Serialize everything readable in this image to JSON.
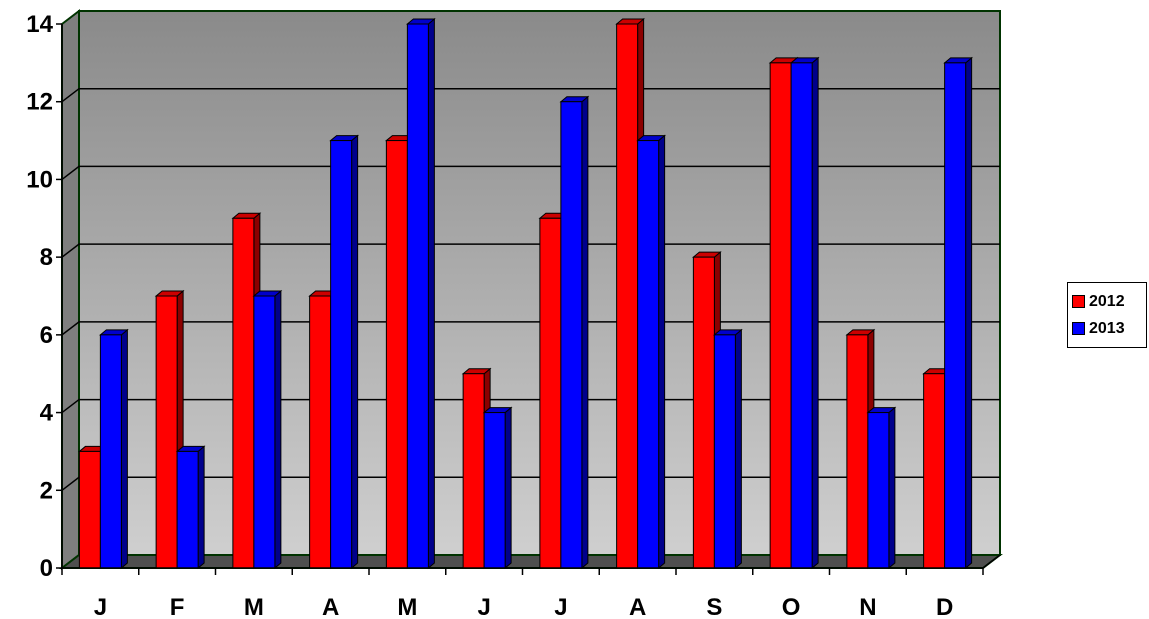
{
  "chart_data": {
    "type": "bar",
    "categories": [
      "J",
      "F",
      "M",
      "A",
      "M",
      "J",
      "J",
      "A",
      "S",
      "O",
      "N",
      "D"
    ],
    "series": [
      {
        "name": "2012",
        "color": "#ff0000",
        "values": [
          3,
          7,
          9,
          7,
          11,
          5,
          9,
          14,
          8,
          13,
          6,
          5
        ]
      },
      {
        "name": "2013",
        "color": "#0000ff",
        "values": [
          6,
          3,
          7,
          11,
          14,
          4,
          12,
          11,
          6,
          13,
          4,
          13
        ]
      }
    ],
    "yticks": [
      "0",
      "2",
      "4",
      "6",
      "8",
      "10",
      "12",
      "14"
    ],
    "ylim": [
      0,
      14
    ],
    "title": "",
    "xlabel": "",
    "ylabel": "",
    "grid": true,
    "three_d": true,
    "legend_position": "right",
    "plot_background": "#a6a6a6",
    "wall_border_color": "#003300"
  }
}
